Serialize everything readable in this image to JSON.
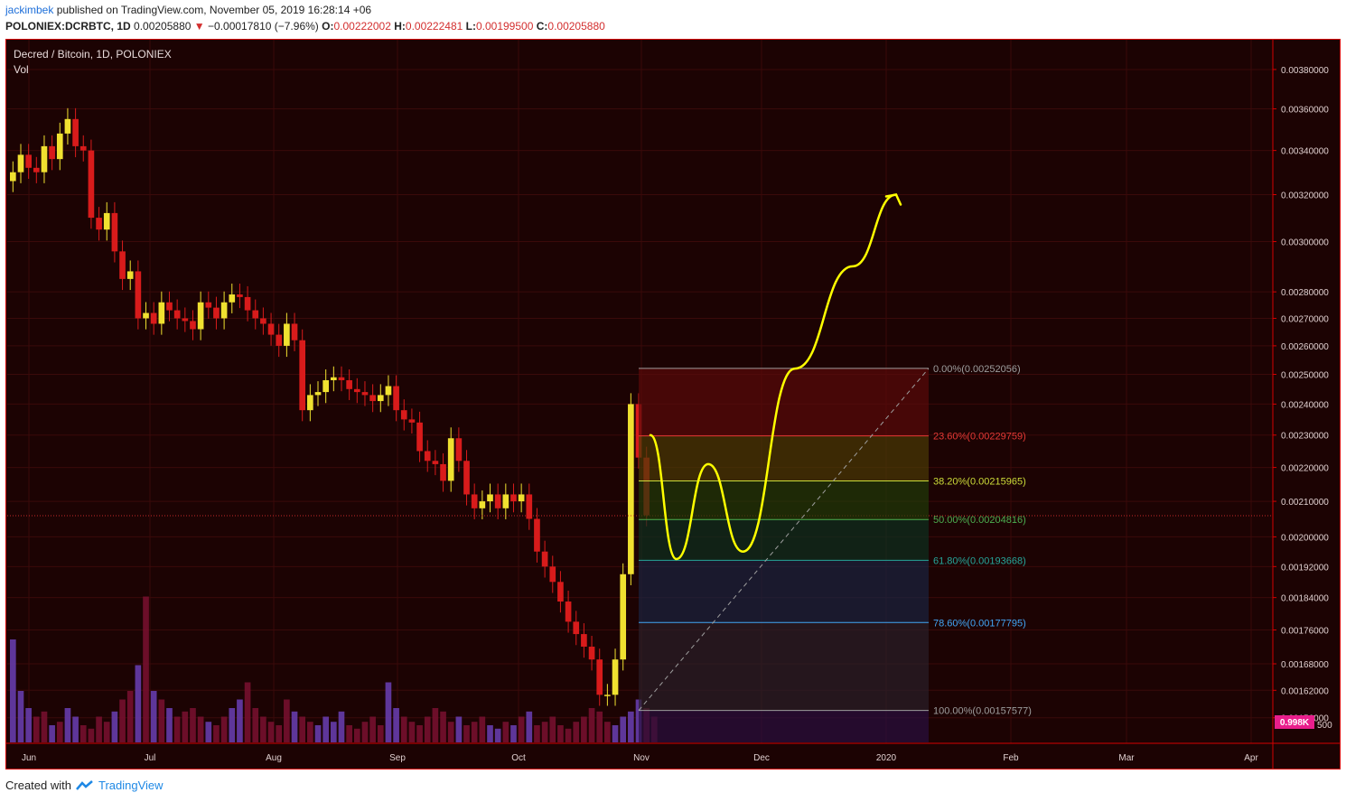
{
  "header": {
    "user": "jackimbek",
    "published_text": "published on TradingView.com, November 05, 2019 16:28:14 +06",
    "symbol": "POLONIEX:DCRBTC, 1D",
    "last": "0.00205880",
    "change": "−0.00017810 (−7.96%)",
    "o_label": "O:",
    "o_value": "0.00222002",
    "h_label": "H:",
    "h_value": "0.00222481",
    "l_label": "L:",
    "l_value": "0.00199500",
    "c_label": "C:",
    "c_value": "0.00205880"
  },
  "footer": {
    "created_with": "Created with",
    "brand": "TradingView"
  },
  "colors": {
    "background": "#1c0303",
    "up_candle": "#f0e130",
    "down_candle": "#d81b1b",
    "volume_up": "#6a3fb5",
    "volume_down": "#7a1030",
    "drawing": "#ffff00",
    "grid": "#3a0a0a"
  },
  "chart_data": {
    "type": "candlestick",
    "title": "Decred / Bitcoin, 1D, POLONIEX",
    "indicator_label": "Vol",
    "x_ticks": [
      "Jun",
      "Jul",
      "Aug",
      "Sep",
      "Oct",
      "Nov",
      "Dec",
      "2020",
      "Feb",
      "Mar",
      "Apr"
    ],
    "y_ticks": [
      0.0038,
      0.0036,
      0.0034,
      0.0032,
      0.003,
      0.0028,
      0.0027,
      0.0026,
      0.0025,
      0.0024,
      0.0023,
      0.0022,
      0.0021,
      0.002,
      0.00192,
      0.00184,
      0.00176,
      0.00168,
      0.00162,
      0.00156
    ],
    "y_scale": "log",
    "ylim": [
      0.00151,
      0.0039
    ],
    "last_price": 0.0020588,
    "volume_label": "0.998K",
    "volume_axis_partial_label": "500",
    "price_path": [
      0.00326,
      0.0033,
      0.00338,
      0.00332,
      0.0033,
      0.00342,
      0.00336,
      0.00348,
      0.00355,
      0.00342,
      0.0034,
      0.0031,
      0.00305,
      0.00312,
      0.00296,
      0.00285,
      0.00288,
      0.0027,
      0.00272,
      0.00268,
      0.00276,
      0.00273,
      0.0027,
      0.00269,
      0.00266,
      0.00276,
      0.00274,
      0.0027,
      0.00276,
      0.00279,
      0.00278,
      0.00273,
      0.0027,
      0.00268,
      0.00264,
      0.0026,
      0.00268,
      0.00262,
      0.00238,
      0.00243,
      0.00244,
      0.00248,
      0.00249,
      0.00248,
      0.00245,
      0.00244,
      0.00243,
      0.00241,
      0.00243,
      0.00246,
      0.00238,
      0.00235,
      0.00234,
      0.00225,
      0.00222,
      0.00221,
      0.00216,
      0.00229,
      0.00222,
      0.00212,
      0.00208,
      0.0021,
      0.00212,
      0.00208,
      0.00212,
      0.0021,
      0.00212,
      0.00205,
      0.00196,
      0.00192,
      0.00188,
      0.00183,
      0.00178,
      0.00175,
      0.00172,
      0.00169,
      0.00161,
      0.00161,
      0.00169,
      0.0019,
      0.0024,
      0.00223,
      0.00206
    ],
    "volume_relative": [
      0.6,
      0.3,
      0.2,
      0.15,
      0.18,
      0.1,
      0.12,
      0.2,
      0.15,
      0.1,
      0.08,
      0.15,
      0.12,
      0.18,
      0.25,
      0.3,
      0.45,
      0.85,
      0.3,
      0.25,
      0.2,
      0.15,
      0.18,
      0.2,
      0.15,
      0.12,
      0.1,
      0.15,
      0.2,
      0.25,
      0.35,
      0.2,
      0.15,
      0.12,
      0.1,
      0.25,
      0.18,
      0.15,
      0.12,
      0.1,
      0.15,
      0.12,
      0.18,
      0.1,
      0.08,
      0.12,
      0.15,
      0.1,
      0.35,
      0.2,
      0.15,
      0.12,
      0.1,
      0.15,
      0.2,
      0.18,
      0.12,
      0.15,
      0.1,
      0.12,
      0.15,
      0.1,
      0.08,
      0.12,
      0.1,
      0.15,
      0.18,
      0.1,
      0.12,
      0.15,
      0.1,
      0.08,
      0.12,
      0.15,
      0.2,
      0.18,
      0.12,
      0.1,
      0.15,
      0.18,
      0.25,
      0.2,
      0.15
    ],
    "fibonacci": {
      "levels": [
        {
          "ratio": "0.00%",
          "price": 0.00252056,
          "label": "0.00%(0.00252056)",
          "color": "#9e9e9e"
        },
        {
          "ratio": "23.60%",
          "price": 0.00229759,
          "label": "23.60%(0.00229759)",
          "color": "#e53935"
        },
        {
          "ratio": "38.20%",
          "price": 0.00215965,
          "label": "38.20%(0.00215965)",
          "color": "#cddc39"
        },
        {
          "ratio": "50.00%",
          "price": 0.00204816,
          "label": "50.00%(0.00204816)",
          "color": "#4caf50"
        },
        {
          "ratio": "61.80%",
          "price": 0.00193668,
          "label": "61.80%(0.00193668)",
          "color": "#26a69a"
        },
        {
          "ratio": "78.60%",
          "price": 0.00177795,
          "label": "78.60%(0.00177795)",
          "color": "#42a5f5"
        },
        {
          "ratio": "100.00%",
          "price": 0.00157577,
          "label": "100.00%(0.00157577)",
          "color": "#9e9e9e"
        }
      ]
    },
    "projection_path": [
      [
        0,
        0.0023
      ],
      [
        0.09,
        0.00194
      ],
      [
        0.2,
        0.00221
      ],
      [
        0.32,
        0.00196
      ],
      [
        0.5,
        0.00252
      ],
      [
        0.7,
        0.0029
      ],
      [
        0.85,
        0.0032
      ]
    ]
  }
}
